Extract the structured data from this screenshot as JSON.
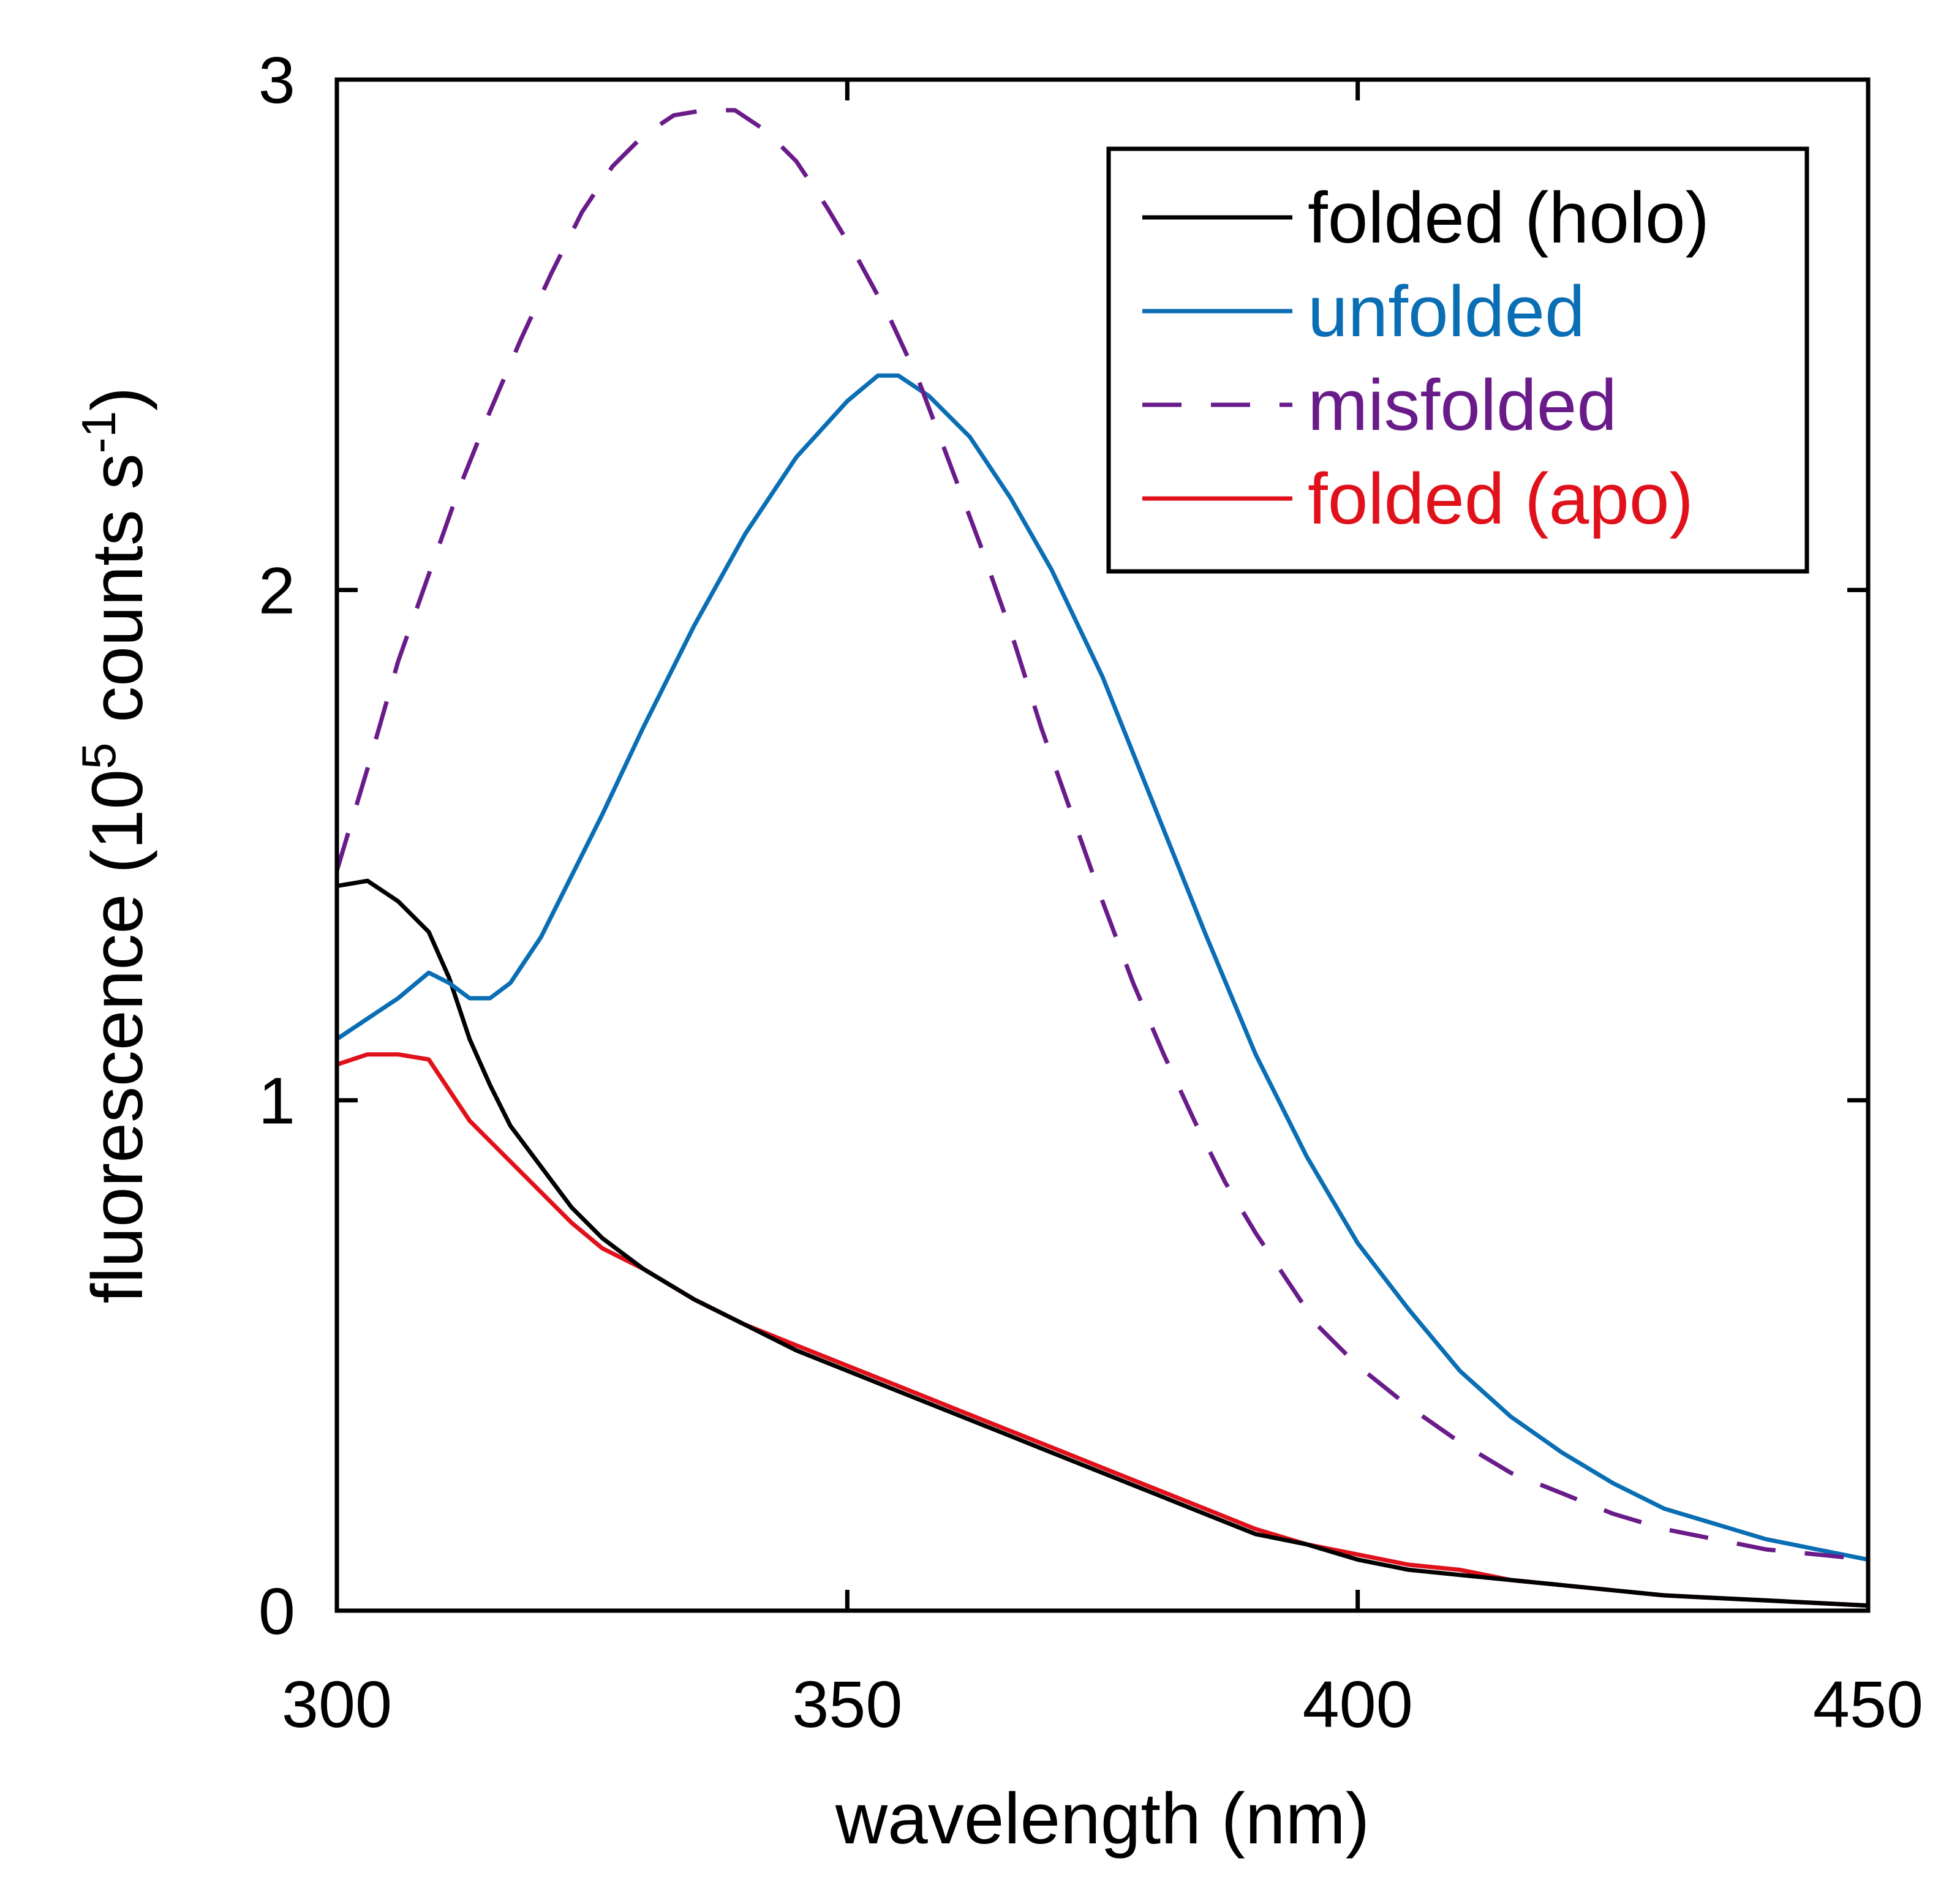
{
  "chart_data": {
    "type": "line",
    "title": "",
    "xlabel": "wavelength (nm)",
    "ylabel": {
      "prefix": "fluorescence (10",
      "exp": "5",
      "middle": " counts s",
      "exp2": "-1",
      "suffix": ")"
    },
    "xlim": [
      300,
      450
    ],
    "ylim": [
      0,
      3
    ],
    "xticks": [
      300,
      350,
      400,
      450
    ],
    "xtick_labels": [
      "300",
      "350",
      "400",
      "450"
    ],
    "yticks": [
      0,
      1,
      2,
      3
    ],
    "ytick_labels": [
      "0",
      "1",
      "2",
      "3"
    ],
    "grid": false,
    "legend_position": "top-right",
    "series": [
      {
        "name": "folded (holo)",
        "color": "#000000",
        "dash": "solid",
        "points": [
          [
            300,
            1.42
          ],
          [
            303,
            1.43
          ],
          [
            306,
            1.39
          ],
          [
            309,
            1.33
          ],
          [
            311,
            1.24
          ],
          [
            313,
            1.12
          ],
          [
            315,
            1.03
          ],
          [
            317,
            0.95
          ],
          [
            320,
            0.87
          ],
          [
            323,
            0.79
          ],
          [
            326,
            0.73
          ],
          [
            330,
            0.67
          ],
          [
            335,
            0.61
          ],
          [
            340,
            0.56
          ],
          [
            345,
            0.51
          ],
          [
            350,
            0.47
          ],
          [
            355,
            0.43
          ],
          [
            360,
            0.39
          ],
          [
            365,
            0.35
          ],
          [
            370,
            0.31
          ],
          [
            375,
            0.27
          ],
          [
            380,
            0.23
          ],
          [
            385,
            0.19
          ],
          [
            390,
            0.15
          ],
          [
            395,
            0.13
          ],
          [
            400,
            0.1
          ],
          [
            405,
            0.08
          ],
          [
            410,
            0.07
          ],
          [
            415,
            0.06
          ],
          [
            420,
            0.05
          ],
          [
            425,
            0.04
          ],
          [
            430,
            0.03
          ],
          [
            435,
            0.025
          ],
          [
            440,
            0.02
          ],
          [
            445,
            0.015
          ],
          [
            450,
            0.01
          ]
        ]
      },
      {
        "name": "unfolded",
        "color": "#0a6eb4",
        "dash": "solid",
        "points": [
          [
            300,
            1.12
          ],
          [
            303,
            1.16
          ],
          [
            306,
            1.2
          ],
          [
            309,
            1.25
          ],
          [
            311,
            1.23
          ],
          [
            313,
            1.2
          ],
          [
            315,
            1.2
          ],
          [
            317,
            1.23
          ],
          [
            320,
            1.32
          ],
          [
            323,
            1.44
          ],
          [
            326,
            1.56
          ],
          [
            330,
            1.73
          ],
          [
            335,
            1.93
          ],
          [
            340,
            2.11
          ],
          [
            345,
            2.26
          ],
          [
            350,
            2.37
          ],
          [
            353,
            2.42
          ],
          [
            355,
            2.42
          ],
          [
            358,
            2.38
          ],
          [
            362,
            2.3
          ],
          [
            366,
            2.18
          ],
          [
            370,
            2.04
          ],
          [
            375,
            1.83
          ],
          [
            380,
            1.58
          ],
          [
            385,
            1.33
          ],
          [
            390,
            1.09
          ],
          [
            395,
            0.89
          ],
          [
            400,
            0.72
          ],
          [
            405,
            0.59
          ],
          [
            410,
            0.47
          ],
          [
            415,
            0.38
          ],
          [
            420,
            0.31
          ],
          [
            425,
            0.25
          ],
          [
            430,
            0.2
          ],
          [
            435,
            0.17
          ],
          [
            440,
            0.14
          ],
          [
            445,
            0.12
          ],
          [
            450,
            0.1
          ]
        ]
      },
      {
        "name": "misfolded",
        "color": "#6a1b8a",
        "dash": "dashed",
        "points": [
          [
            300,
            1.45
          ],
          [
            303,
            1.65
          ],
          [
            306,
            1.86
          ],
          [
            309,
            2.03
          ],
          [
            312,
            2.2
          ],
          [
            315,
            2.35
          ],
          [
            318,
            2.49
          ],
          [
            321,
            2.62
          ],
          [
            324,
            2.74
          ],
          [
            327,
            2.83
          ],
          [
            330,
            2.89
          ],
          [
            333,
            2.93
          ],
          [
            336,
            2.94
          ],
          [
            339,
            2.94
          ],
          [
            342,
            2.9
          ],
          [
            345,
            2.84
          ],
          [
            348,
            2.75
          ],
          [
            351,
            2.65
          ],
          [
            354,
            2.54
          ],
          [
            357,
            2.41
          ],
          [
            360,
            2.25
          ],
          [
            363,
            2.09
          ],
          [
            366,
            1.92
          ],
          [
            369,
            1.73
          ],
          [
            372,
            1.56
          ],
          [
            375,
            1.39
          ],
          [
            378,
            1.23
          ],
          [
            381,
            1.09
          ],
          [
            384,
            0.96
          ],
          [
            387,
            0.84
          ],
          [
            390,
            0.74
          ],
          [
            393,
            0.65
          ],
          [
            396,
            0.56
          ],
          [
            400,
            0.48
          ],
          [
            405,
            0.4
          ],
          [
            410,
            0.33
          ],
          [
            415,
            0.27
          ],
          [
            420,
            0.23
          ],
          [
            425,
            0.19
          ],
          [
            430,
            0.16
          ],
          [
            435,
            0.14
          ],
          [
            440,
            0.12
          ],
          [
            445,
            0.11
          ],
          [
            450,
            0.1
          ]
        ]
      },
      {
        "name": "folded (apo)",
        "color": "#e0111b",
        "dash": "solid",
        "points": [
          [
            300,
            1.07
          ],
          [
            303,
            1.09
          ],
          [
            306,
            1.09
          ],
          [
            309,
            1.08
          ],
          [
            311,
            1.02
          ],
          [
            313,
            0.96
          ],
          [
            315,
            0.92
          ],
          [
            317,
            0.88
          ],
          [
            320,
            0.82
          ],
          [
            323,
            0.76
          ],
          [
            326,
            0.71
          ],
          [
            330,
            0.67
          ],
          [
            335,
            0.61
          ],
          [
            340,
            0.56
          ],
          [
            345,
            0.52
          ],
          [
            350,
            0.48
          ],
          [
            355,
            0.44
          ],
          [
            360,
            0.4
          ],
          [
            365,
            0.36
          ],
          [
            370,
            0.32
          ],
          [
            375,
            0.28
          ],
          [
            380,
            0.24
          ],
          [
            385,
            0.2
          ],
          [
            390,
            0.16
          ],
          [
            395,
            0.13
          ],
          [
            400,
            0.11
          ],
          [
            405,
            0.09
          ],
          [
            410,
            0.08
          ],
          [
            415,
            0.06
          ],
          [
            420,
            0.05
          ],
          [
            425,
            0.04
          ],
          [
            430,
            0.03
          ],
          [
            435,
            0.025
          ],
          [
            440,
            0.02
          ],
          [
            445,
            0.015
          ],
          [
            450,
            0.01
          ]
        ]
      }
    ]
  }
}
